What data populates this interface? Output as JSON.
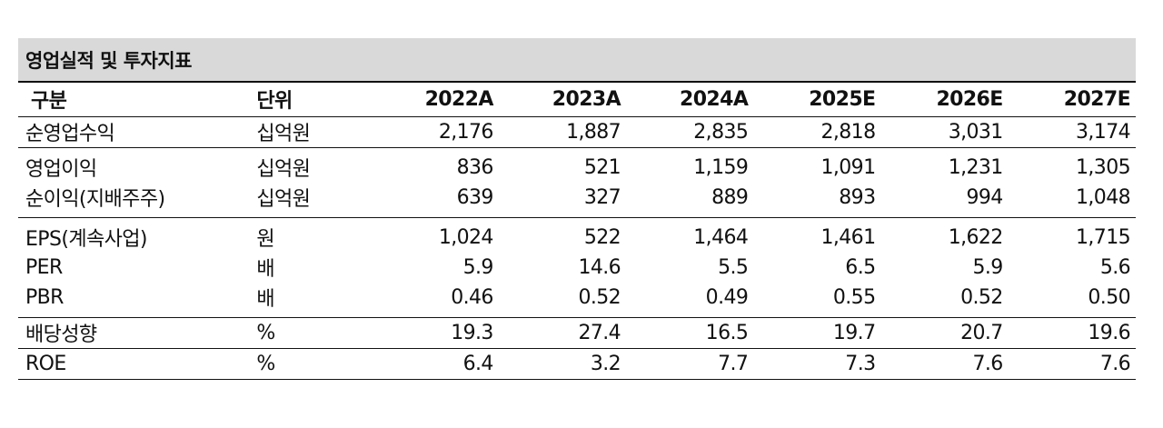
{
  "title": "영업실적 및 투자지표",
  "header": {
    "label": "구분",
    "unit": "단위",
    "years": [
      "2022A",
      "2023A",
      "2024A",
      "2025E",
      "2026E",
      "2027E"
    ]
  },
  "rows": [
    {
      "label": "순영업수익",
      "unit": "십억원",
      "values": [
        "2,176",
        "1,887",
        "2,835",
        "2,818",
        "3,031",
        "3,174"
      ]
    },
    {
      "label": "영업이익",
      "unit": "십억원",
      "values": [
        "836",
        "521",
        "1,159",
        "1,091",
        "1,231",
        "1,305"
      ]
    },
    {
      "label": "순이익(지배주주)",
      "unit": "십억원",
      "values": [
        "639",
        "327",
        "889",
        "893",
        "994",
        "1,048"
      ]
    },
    {
      "label": "EPS(계속사업)",
      "unit": "원",
      "values": [
        "1,024",
        "522",
        "1,464",
        "1,461",
        "1,622",
        "1,715"
      ]
    },
    {
      "label": "PER",
      "unit": "배",
      "values": [
        "5.9",
        "14.6",
        "5.5",
        "6.5",
        "5.9",
        "5.6"
      ]
    },
    {
      "label": "PBR",
      "unit": "배",
      "values": [
        "0.46",
        "0.52",
        "0.49",
        "0.55",
        "0.52",
        "0.50"
      ]
    },
    {
      "label": "배당성향",
      "unit": "%",
      "values": [
        "19.3",
        "27.4",
        "16.5",
        "19.7",
        "20.7",
        "19.6"
      ]
    },
    {
      "label": "ROE",
      "unit": "%",
      "values": [
        "6.4",
        "3.2",
        "7.7",
        "7.3",
        "7.6",
        "7.6"
      ]
    }
  ]
}
